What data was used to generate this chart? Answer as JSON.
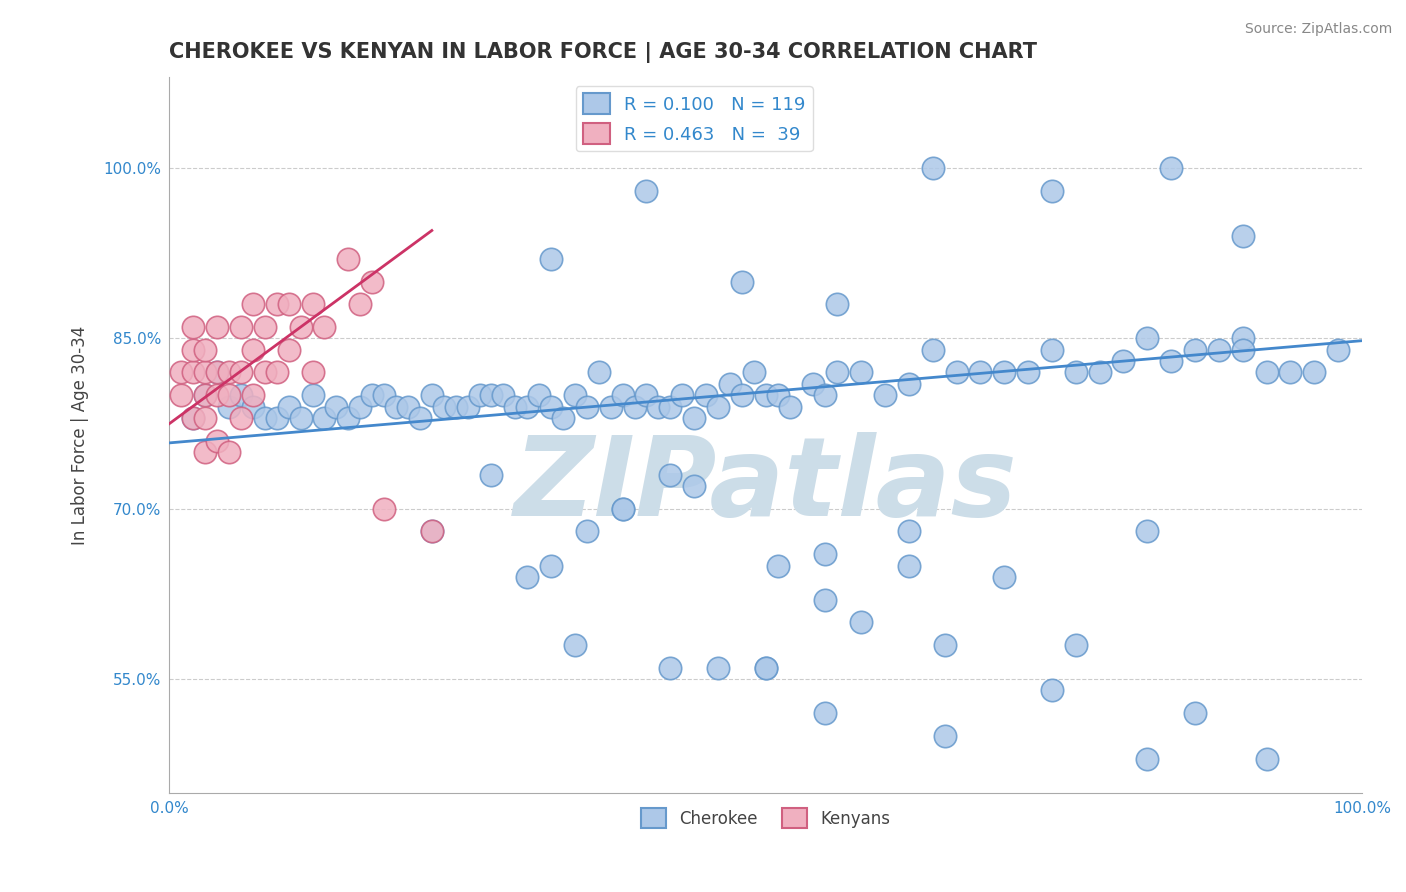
{
  "title": "CHEROKEE VS KENYAN IN LABOR FORCE | AGE 30-34 CORRELATION CHART",
  "source": "Source: ZipAtlas.com",
  "ylabel": "In Labor Force | Age 30-34",
  "xlim": [
    0.0,
    1.0
  ],
  "ylim": [
    0.45,
    1.08
  ],
  "yticks": [
    0.55,
    0.7,
    0.85,
    1.0
  ],
  "ytick_labels": [
    "55.0%",
    "70.0%",
    "85.0%",
    "100.0%"
  ],
  "xticks": [
    0.0,
    0.25,
    0.5,
    0.75,
    1.0
  ],
  "xtick_labels": [
    "0.0%",
    "",
    "",
    "",
    "100.0%"
  ],
  "legend_blue_r": "R = 0.100",
  "legend_blue_n": "N = 119",
  "legend_pink_r": "R = 0.463",
  "legend_pink_n": "N =  39",
  "blue_color": "#adc8e8",
  "blue_edge": "#6699cc",
  "pink_color": "#f0b0c0",
  "pink_edge": "#d06080",
  "blue_line_color": "#4488cc",
  "pink_line_color": "#cc3366",
  "watermark": "ZIPatlas",
  "watermark_color": "#ccdde8",
  "background_color": "#ffffff",
  "grid_color": "#cccccc",
  "title_color": "#333333",
  "blue_scatter_x": [
    0.02,
    0.03,
    0.04,
    0.05,
    0.06,
    0.07,
    0.08,
    0.09,
    0.1,
    0.11,
    0.12,
    0.13,
    0.14,
    0.15,
    0.16,
    0.17,
    0.18,
    0.19,
    0.2,
    0.21,
    0.22,
    0.23,
    0.24,
    0.25,
    0.26,
    0.27,
    0.28,
    0.29,
    0.3,
    0.31,
    0.32,
    0.33,
    0.34,
    0.35,
    0.36,
    0.37,
    0.38,
    0.39,
    0.4,
    0.41,
    0.42,
    0.43,
    0.44,
    0.45,
    0.46,
    0.47,
    0.48,
    0.49,
    0.5,
    0.51,
    0.52,
    0.54,
    0.55,
    0.56,
    0.58,
    0.6,
    0.62,
    0.64,
    0.66,
    0.68,
    0.7,
    0.72,
    0.74,
    0.76,
    0.78,
    0.8,
    0.82,
    0.84,
    0.86,
    0.88,
    0.9,
    0.92,
    0.94,
    0.96,
    0.98,
    0.22,
    0.27,
    0.32,
    0.38,
    0.44,
    0.51,
    0.55,
    0.62,
    0.7,
    0.82,
    0.9,
    0.34,
    0.42,
    0.5,
    0.55,
    0.62,
    0.76,
    0.86,
    0.92,
    0.3,
    0.38,
    0.46,
    0.55,
    0.65,
    0.35,
    0.42,
    0.5,
    0.58,
    0.65,
    0.74,
    0.82,
    0.9,
    0.32,
    0.4,
    0.48,
    0.56,
    0.64,
    0.74,
    0.84
  ],
  "blue_scatter_y": [
    0.78,
    0.8,
    0.82,
    0.79,
    0.8,
    0.79,
    0.78,
    0.78,
    0.79,
    0.78,
    0.8,
    0.78,
    0.79,
    0.78,
    0.79,
    0.8,
    0.8,
    0.79,
    0.79,
    0.78,
    0.8,
    0.79,
    0.79,
    0.79,
    0.8,
    0.8,
    0.8,
    0.79,
    0.79,
    0.8,
    0.79,
    0.78,
    0.8,
    0.79,
    0.82,
    0.79,
    0.8,
    0.79,
    0.8,
    0.79,
    0.79,
    0.8,
    0.78,
    0.8,
    0.79,
    0.81,
    0.8,
    0.82,
    0.8,
    0.8,
    0.79,
    0.81,
    0.8,
    0.82,
    0.82,
    0.8,
    0.81,
    0.84,
    0.82,
    0.82,
    0.82,
    0.82,
    0.84,
    0.82,
    0.82,
    0.83,
    0.85,
    0.83,
    0.84,
    0.84,
    0.85,
    0.82,
    0.82,
    0.82,
    0.84,
    0.68,
    0.73,
    0.65,
    0.7,
    0.72,
    0.65,
    0.66,
    0.68,
    0.64,
    0.68,
    0.84,
    0.58,
    0.56,
    0.56,
    0.62,
    0.65,
    0.58,
    0.52,
    0.48,
    0.64,
    0.7,
    0.56,
    0.52,
    0.58,
    0.68,
    0.73,
    0.56,
    0.6,
    0.5,
    0.54,
    0.48,
    0.94,
    0.92,
    0.98,
    0.9,
    0.88,
    1.0,
    0.98,
    1.0
  ],
  "pink_scatter_x": [
    0.01,
    0.01,
    0.02,
    0.02,
    0.02,
    0.02,
    0.03,
    0.03,
    0.03,
    0.03,
    0.03,
    0.04,
    0.04,
    0.04,
    0.04,
    0.05,
    0.05,
    0.05,
    0.06,
    0.06,
    0.06,
    0.07,
    0.07,
    0.07,
    0.08,
    0.08,
    0.09,
    0.09,
    0.1,
    0.1,
    0.11,
    0.12,
    0.12,
    0.13,
    0.15,
    0.16,
    0.17,
    0.18,
    0.22
  ],
  "pink_scatter_y": [
    0.8,
    0.82,
    0.78,
    0.82,
    0.84,
    0.86,
    0.75,
    0.78,
    0.8,
    0.82,
    0.84,
    0.76,
    0.8,
    0.82,
    0.86,
    0.75,
    0.8,
    0.82,
    0.78,
    0.82,
    0.86,
    0.8,
    0.84,
    0.88,
    0.82,
    0.86,
    0.82,
    0.88,
    0.84,
    0.88,
    0.86,
    0.82,
    0.88,
    0.86,
    0.92,
    0.88,
    0.9,
    0.7,
    0.68
  ],
  "blue_line_x": [
    0.0,
    1.0
  ],
  "blue_line_y": [
    0.758,
    0.848
  ],
  "pink_line_x": [
    0.0,
    0.22
  ],
  "pink_line_y": [
    0.775,
    0.945
  ]
}
